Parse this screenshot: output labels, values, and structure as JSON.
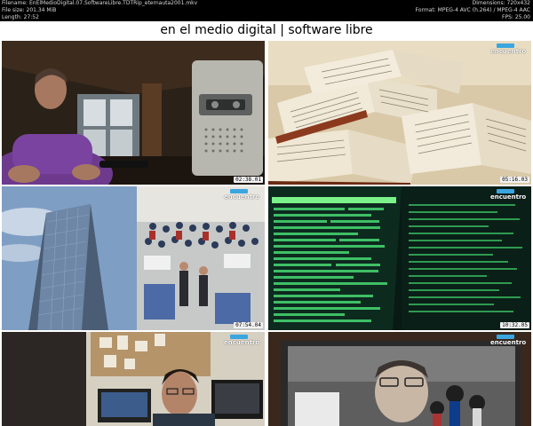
{
  "header": {
    "filename": "Filename: EnElMedioDigital.07.SoftwareLibre.TDTRip_eternauta2001.mkv",
    "filesize": "File size: 201.34 MiB",
    "length": "Length: 27:52",
    "dimensions": "Dimensions: 720x432",
    "format": "Format: MPEG-4 AVC (h.264) / MPEG-4 AAC",
    "fps": "FPS: 25.00"
  },
  "title": "en el medio digital | software libre",
  "channel_logo": "encuentro",
  "thumbnails": [
    {
      "timestamp": "02:38.01"
    },
    {
      "timestamp": "05:16.03"
    },
    {
      "timestamp": "07:54.04"
    },
    {
      "timestamp": "10:32.05"
    },
    {
      "timestamp": ""
    },
    {
      "timestamp": ""
    }
  ],
  "icons": [
    "channel-logo-icon"
  ]
}
